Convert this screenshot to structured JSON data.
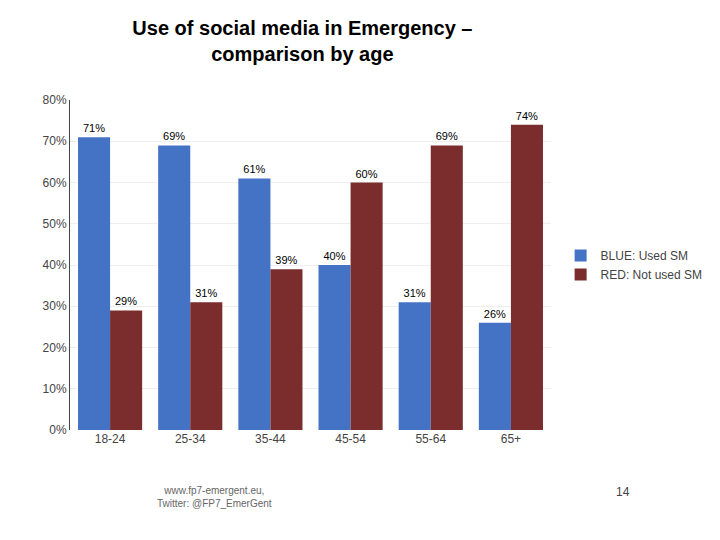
{
  "chart_data": {
    "type": "bar",
    "title": "Use of social media in Emergency –\ncomparison by age",
    "categories": [
      "18-24",
      "25-34",
      "35-44",
      "45-54",
      "55-64",
      "65+"
    ],
    "series": [
      {
        "name": "BLUE: Used SM",
        "color": "#4472C4",
        "values": [
          71,
          69,
          61,
          40,
          31,
          26
        ],
        "value_labels": [
          "71%",
          "69%",
          "61%",
          "40%",
          "31%",
          "26%"
        ]
      },
      {
        "name": "RED: Not used SM",
        "color": "#7B2C2C",
        "values": [
          29,
          31,
          39,
          60,
          69,
          74
        ],
        "value_labels": [
          "29%",
          "31%",
          "39%",
          "60%",
          "69%",
          "74%"
        ]
      }
    ],
    "ylim": [
      0,
      80
    ],
    "yticks": [
      {
        "value": 0,
        "label": "0%"
      },
      {
        "value": 10,
        "label": "10%"
      },
      {
        "value": 20,
        "label": "20%"
      },
      {
        "value": 30,
        "label": "30%"
      },
      {
        "value": 40,
        "label": "40%"
      },
      {
        "value": 50,
        "label": "50%"
      },
      {
        "value": 60,
        "label": "60%"
      },
      {
        "value": 70,
        "label": "70%"
      },
      {
        "value": 80,
        "label": "80%"
      }
    ],
    "grid": true,
    "data_labels": true,
    "legend": "right",
    "annotations": [
      "www.fp7-emergent.eu,\nTwitter: @FP7_EmerGent",
      "14"
    ]
  }
}
